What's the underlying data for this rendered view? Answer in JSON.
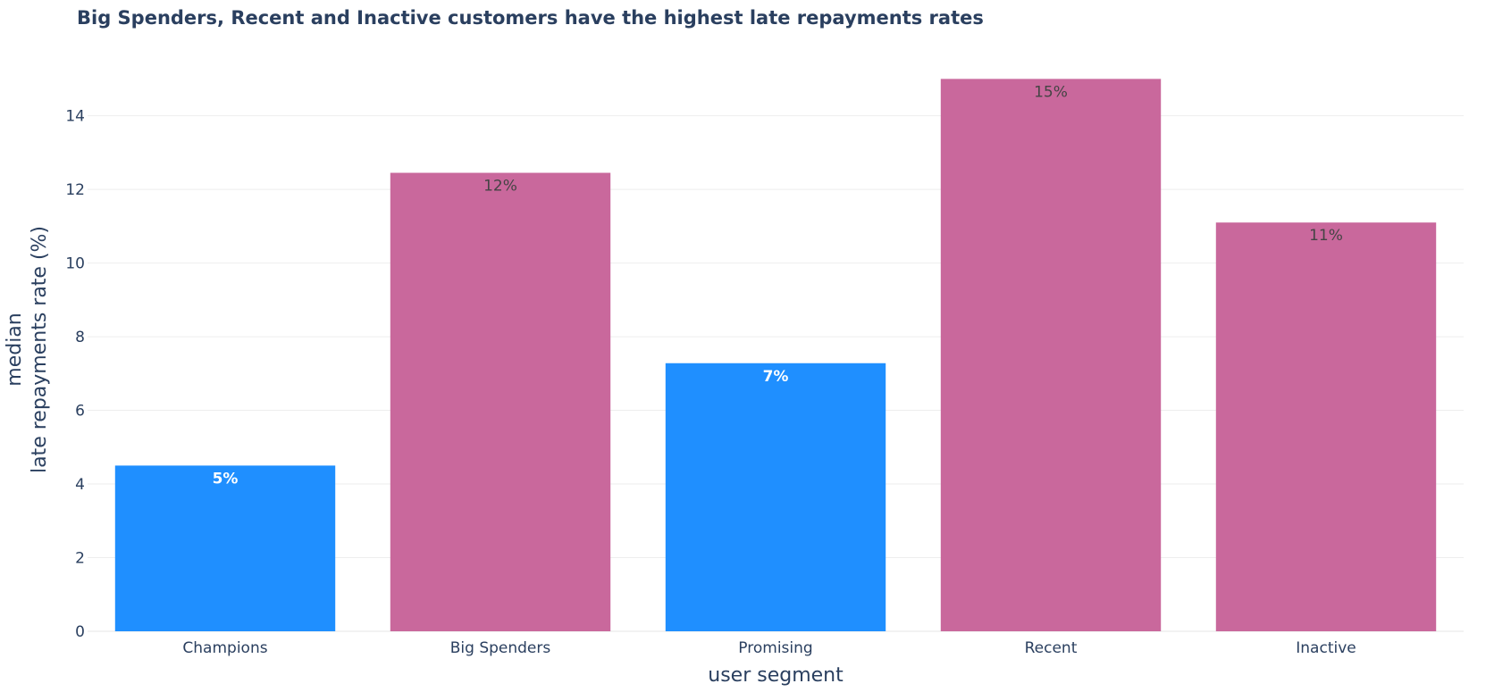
{
  "chart_data": {
    "type": "bar",
    "title": "Big Spenders, Recent and Inactive customers have the highest late repayments rates",
    "xlabel": "user segment",
    "ylabel_lines": [
      "median",
      "late repayments rate (%)"
    ],
    "categories": [
      "Champions",
      "Big Spenders",
      "Promising",
      "Recent",
      "Inactive"
    ],
    "values": [
      4.5,
      12.45,
      7.28,
      15.0,
      11.1
    ],
    "data_labels": [
      "5%",
      "12%",
      "7%",
      "15%",
      "11%"
    ],
    "highlighted": [
      false,
      true,
      false,
      true,
      true
    ],
    "ylim": [
      0,
      15.3
    ],
    "yticks": [
      0,
      2,
      4,
      6,
      8,
      10,
      12,
      14
    ],
    "grid": true,
    "colors": {
      "default": "#1f8fff",
      "highlight": "#c9689c",
      "default_label": "#ffffff",
      "highlight_label": "#444444",
      "grid": "#eeeeee",
      "text": "#2a3f5f"
    }
  }
}
